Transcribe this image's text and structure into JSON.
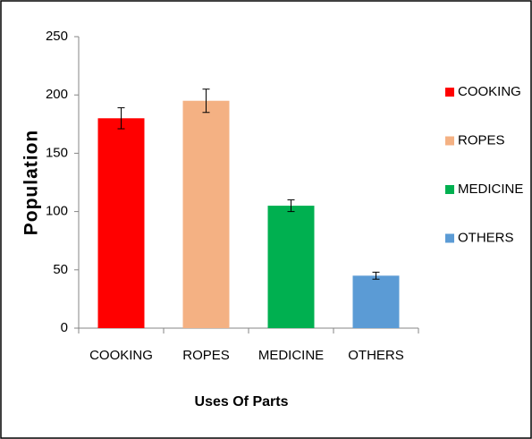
{
  "chart_data": {
    "type": "bar",
    "x_label": "Uses Of Parts",
    "y_label": "Population",
    "categories": [
      "COOKING",
      "ROPES",
      "MEDICINE",
      "OTHERS"
    ],
    "values": [
      180,
      195,
      105,
      45
    ],
    "errors": [
      9,
      10,
      5,
      3
    ],
    "colors": [
      "#ff0000",
      "#f4b183",
      "#00b050",
      "#5b9bd5"
    ],
    "ylim": [
      0,
      250
    ],
    "yticks": [
      0,
      50,
      100,
      150,
      200,
      250
    ],
    "grid": false,
    "legend": "right"
  }
}
